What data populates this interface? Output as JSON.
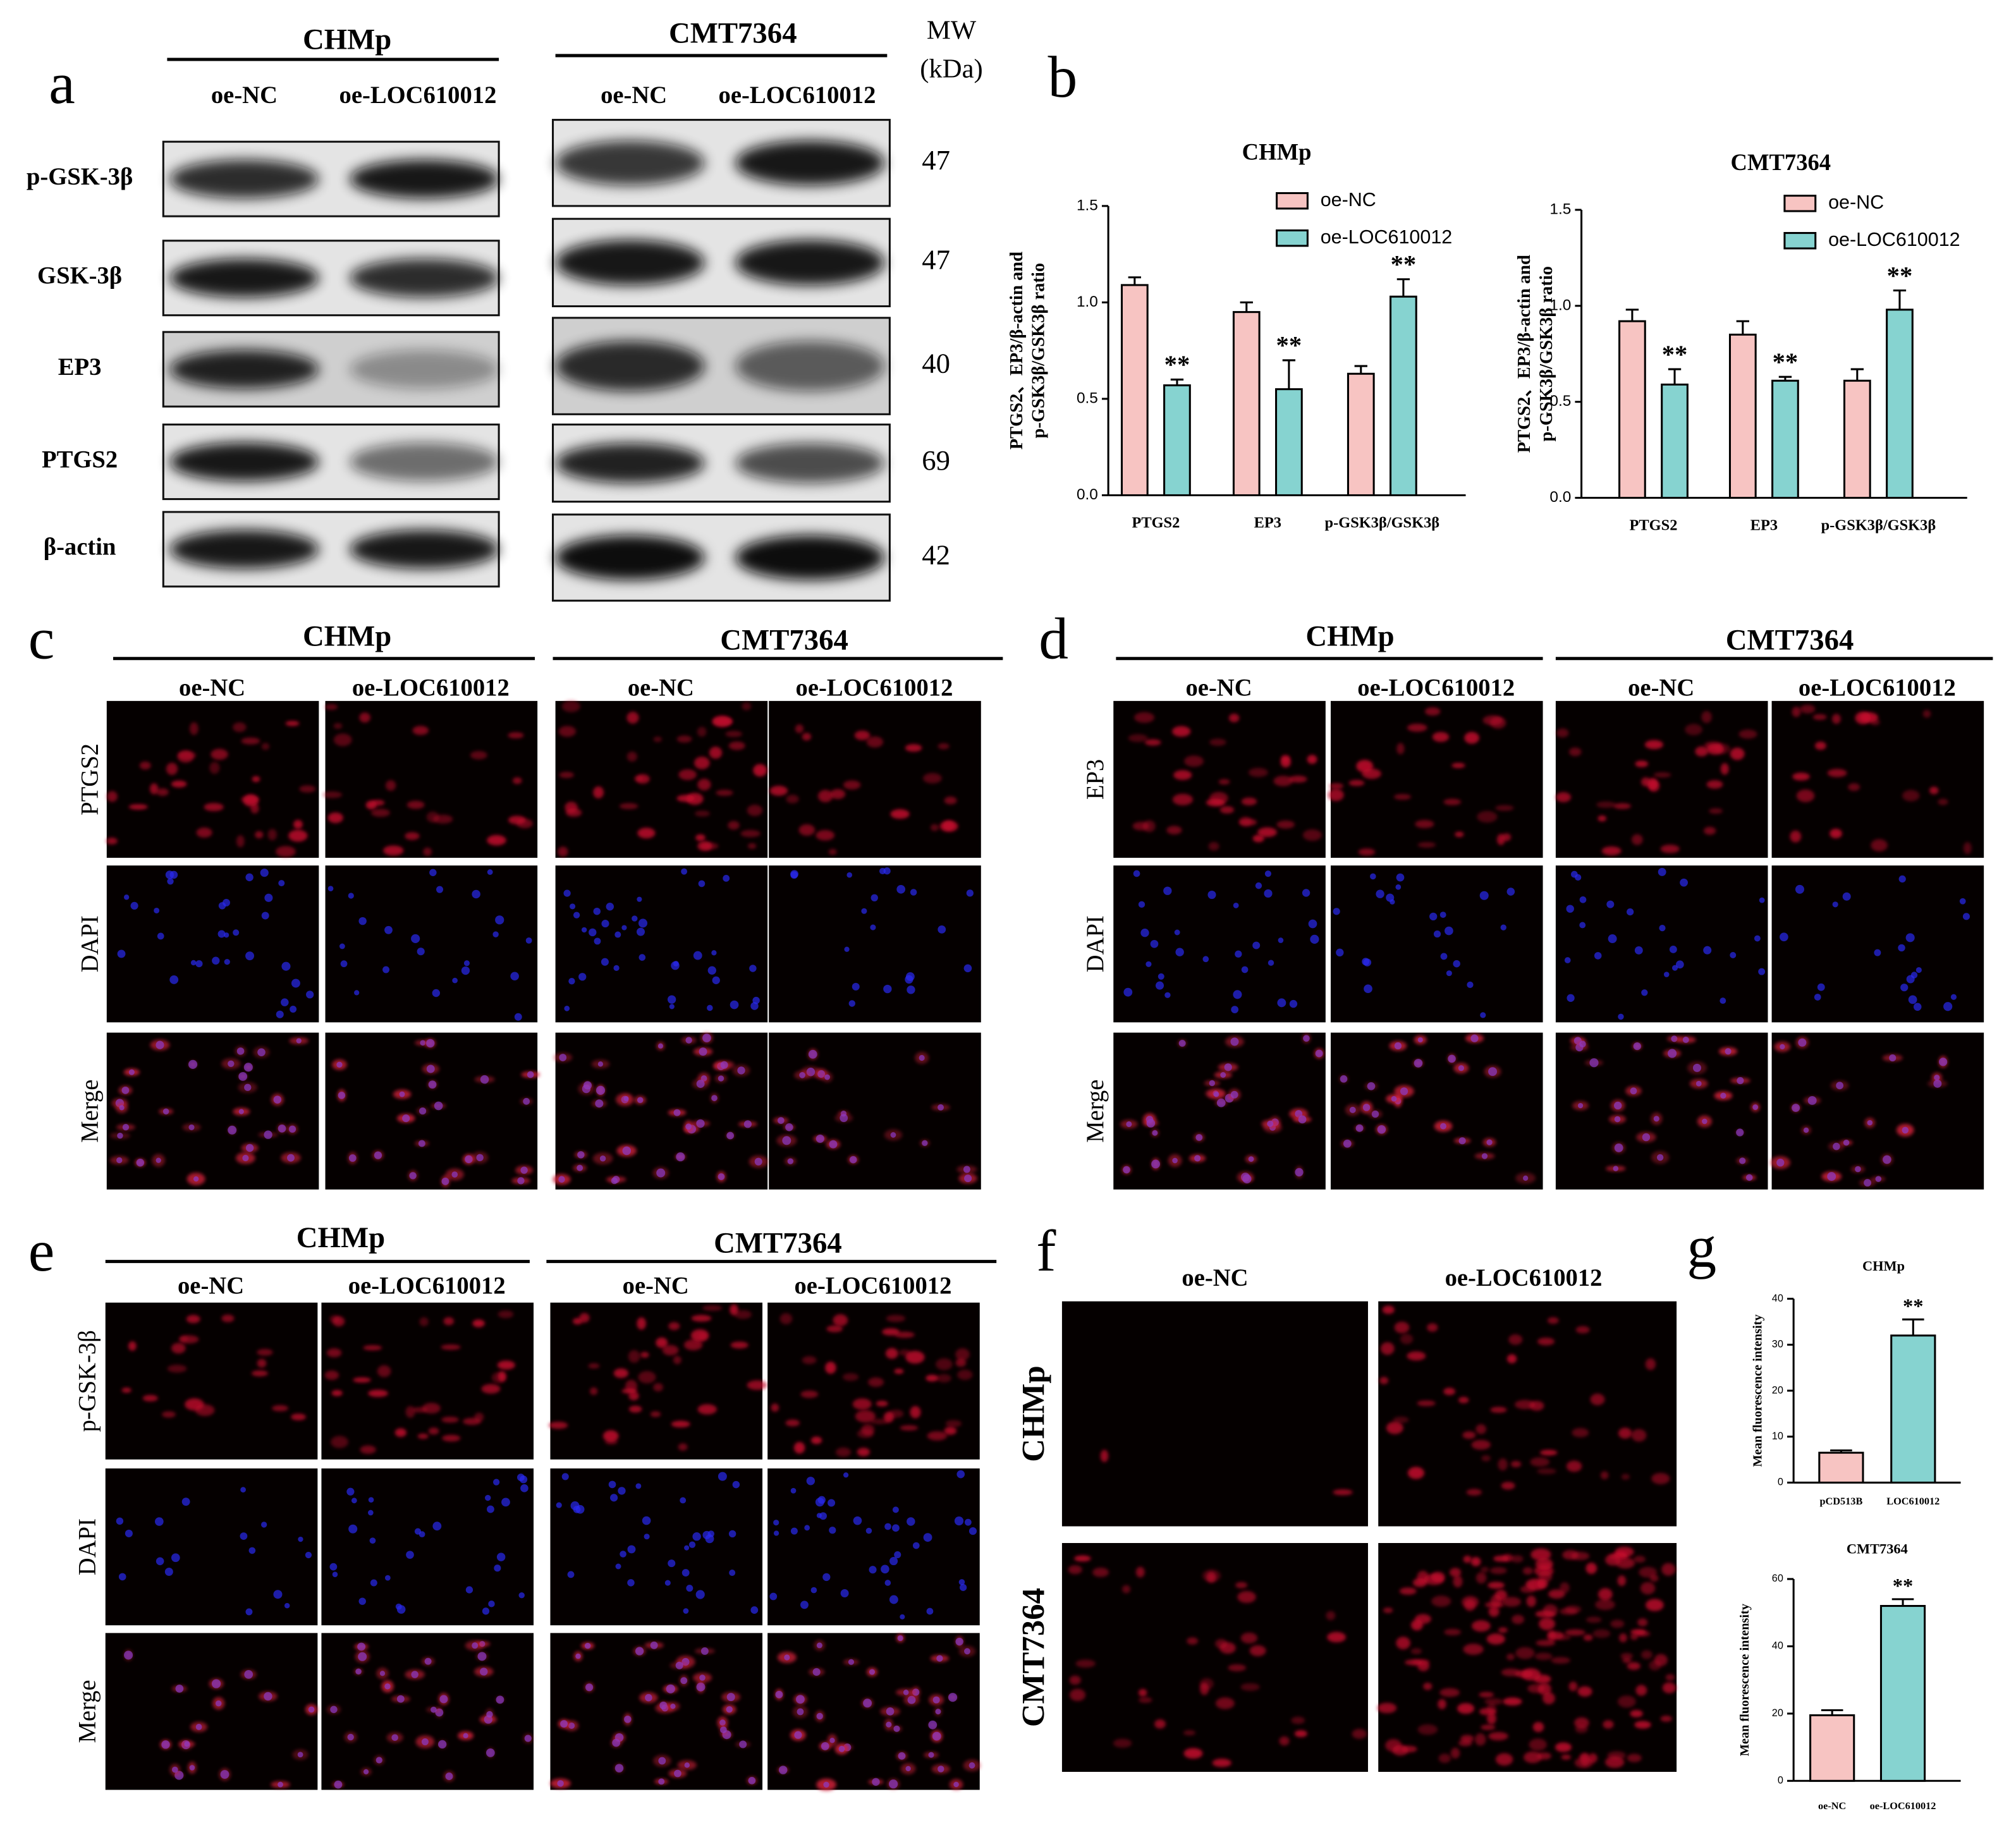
{
  "panel_a": {
    "label": "a",
    "groups": [
      {
        "name": "CHMp",
        "lanes": [
          "oe-NC",
          "oe-LOC610012"
        ]
      },
      {
        "name": "CMT7364",
        "lanes": [
          "oe-NC",
          "oe-LOC610012"
        ]
      }
    ],
    "mw_title": [
      "MW",
      "(kDa)"
    ],
    "rows": [
      {
        "protein": "p-GSK-3β",
        "mw": 47
      },
      {
        "protein": "GSK-3β",
        "mw": 47
      },
      {
        "protein": "EP3",
        "mw": 40
      },
      {
        "protein": "PTGS2",
        "mw": 69
      },
      {
        "protein": "β-actin",
        "mw": 42
      }
    ]
  },
  "panel_b": {
    "label": "b"
  },
  "chart_data": [
    {
      "type": "bar",
      "title": "CHMp",
      "ylabel": [
        "PTGS2、EP3/β-actin and",
        "p-GSK3β/GSK3β ratio"
      ],
      "categories": [
        "PTGS2",
        "EP3",
        "p-GSK3β/GSK3β"
      ],
      "series": [
        {
          "name": "oe-NC",
          "color": "#f7c4c2",
          "values": [
            1.09,
            0.95,
            0.63
          ],
          "errors": [
            0.04,
            0.05,
            0.04
          ]
        },
        {
          "name": "oe-LOC610012",
          "color": "#86d3d0",
          "values": [
            0.57,
            0.55,
            1.03
          ],
          "errors": [
            0.03,
            0.15,
            0.09
          ],
          "significance": [
            "**",
            "**",
            "**"
          ]
        }
      ],
      "ylim": [
        0,
        1.5
      ],
      "yticks": [
        {
          "value": 0,
          "label": "0.0"
        },
        {
          "value": 0.5,
          "label": "0.5"
        },
        {
          "value": 1,
          "label": "1.0"
        },
        {
          "value": 1.5,
          "label": "1.5"
        }
      ],
      "legend": "top-right"
    },
    {
      "type": "bar",
      "title": "CMT7364",
      "ylabel": [
        "PTGS2、EP3/β-actin and",
        "p-GSK3β/GSK3β ratio"
      ],
      "categories": [
        "PTGS2",
        "EP3",
        "p-GSK3β/GSK3β"
      ],
      "series": [
        {
          "name": "oe-NC",
          "color": "#f7c4c2",
          "values": [
            0.92,
            0.85,
            0.61
          ],
          "errors": [
            0.06,
            0.07,
            0.06
          ]
        },
        {
          "name": "oe-LOC610012",
          "color": "#86d3d0",
          "values": [
            0.59,
            0.61,
            0.98
          ],
          "errors": [
            0.08,
            0.02,
            0.1
          ],
          "significance": [
            "**",
            "**",
            "**"
          ]
        }
      ],
      "ylim": [
        0,
        1.5
      ],
      "yticks": [
        {
          "value": 0,
          "label": "0.0"
        },
        {
          "value": 0.5,
          "label": "0.5"
        },
        {
          "value": 1,
          "label": "1.0"
        },
        {
          "value": 1.5,
          "label": "1.5"
        }
      ],
      "legend": "top-right"
    },
    {
      "type": "bar",
      "title": "CHMp",
      "ylabel": [
        "Mean fluorescence intensity"
      ],
      "categories": [
        "pCD513B",
        "LOC610012"
      ],
      "values": [
        6.5,
        32
      ],
      "errors": [
        0.5,
        3.5
      ],
      "colors": [
        "#f7c4c2",
        "#86d3d0"
      ],
      "significance": [
        null,
        "**"
      ],
      "ylim": [
        0,
        40
      ],
      "yticks": [
        0,
        10,
        20,
        30,
        40
      ]
    },
    {
      "type": "bar",
      "title": "CMT7364",
      "ylabel": [
        "Mean fluorescence intensity"
      ],
      "categories": [
        "oe-NC",
        "oe-LOC610012"
      ],
      "values": [
        19.5,
        52
      ],
      "errors": [
        1.5,
        2
      ],
      "colors": [
        "#f7c4c2",
        "#86d3d0"
      ],
      "significance": [
        null,
        "**"
      ],
      "ylim": [
        0,
        60
      ],
      "yticks": [
        0,
        20,
        40,
        60
      ]
    }
  ],
  "panel_c": {
    "label": "c",
    "groups": [
      {
        "name": "CHMp",
        "lanes": [
          "oe-NC",
          "oe-LOC610012"
        ]
      },
      {
        "name": "CMT7364",
        "lanes": [
          "oe-NC",
          "oe-LOC610012"
        ]
      }
    ],
    "rows": [
      "PTGS2",
      "DAPI",
      "Merge"
    ]
  },
  "panel_d": {
    "label": "d",
    "groups": [
      {
        "name": "CHMp",
        "lanes": [
          "oe-NC",
          "oe-LOC610012"
        ]
      },
      {
        "name": "CMT7364",
        "lanes": [
          "oe-NC",
          "oe-LOC610012"
        ]
      }
    ],
    "rows": [
      "EP3",
      "DAPI",
      "Merge"
    ]
  },
  "panel_e": {
    "label": "e",
    "groups": [
      {
        "name": "CHMp",
        "lanes": [
          "oe-NC",
          "oe-LOC610012"
        ]
      },
      {
        "name": "CMT7364",
        "lanes": [
          "oe-NC",
          "oe-LOC610012"
        ]
      }
    ],
    "rows": [
      "p-GSK-3β",
      "DAPI",
      "Merge"
    ]
  },
  "panel_f": {
    "label": "f",
    "columns": [
      "oe-NC",
      "oe-LOC610012"
    ],
    "rows": [
      "CHMp",
      "CMT7364"
    ]
  },
  "panel_g": {
    "label": "g"
  }
}
